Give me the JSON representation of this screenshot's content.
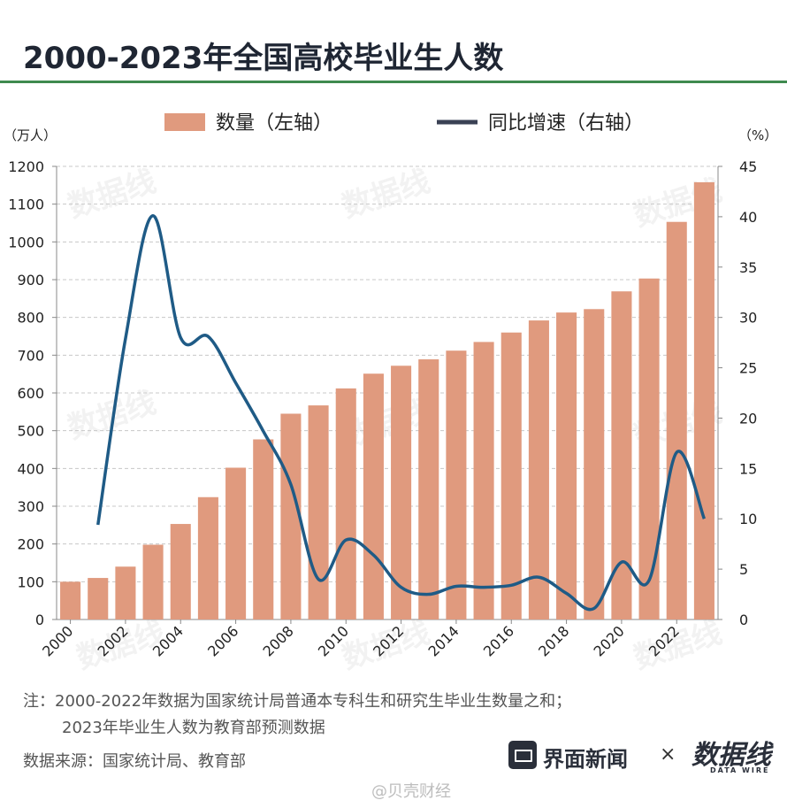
{
  "title": "2000-2023年全国高校毕业生人数",
  "legend": {
    "bar_label": "数量（左轴）",
    "line_label": "同比增速（右轴）"
  },
  "axes": {
    "left_unit": "（万人）",
    "right_unit": "（%）"
  },
  "notes": {
    "line1": "注：2000-2022年数据为国家统计局普通本专科生和研究生毕业生数量之和；",
    "line2": "2023年毕业生人数为教育部预测数据",
    "source": "数据来源：国家统计局、教育部"
  },
  "brand": {
    "name": "界面新闻",
    "times": "×",
    "logo_text": "数据线",
    "logo_sub": "DATA WIRE"
  },
  "watermark": {
    "text": "数据线",
    "sub": "DATA WIRE",
    "bottom": "@贝壳财经"
  },
  "colors": {
    "bar": "#e09a7e",
    "line": "#1f5b86",
    "rule": "#3f8a4f"
  },
  "chart_data": {
    "type": "bar",
    "title": "2000-2023年全国高校毕业生人数",
    "x": [
      2000,
      2001,
      2002,
      2003,
      2004,
      2005,
      2006,
      2007,
      2008,
      2009,
      2010,
      2011,
      2012,
      2013,
      2014,
      2015,
      2016,
      2017,
      2018,
      2019,
      2020,
      2021,
      2022,
      2023
    ],
    "x_tick_labels": [
      "2000",
      "2002",
      "2004",
      "2006",
      "2008",
      "2010",
      "2012",
      "2014",
      "2016",
      "2018",
      "2020",
      "2022"
    ],
    "series": [
      {
        "name": "数量（左轴）",
        "type": "bar",
        "axis": "left",
        "values": [
          100,
          110,
          140,
          198,
          253,
          324,
          402,
          477,
          545,
          567,
          612,
          651,
          672,
          689,
          712,
          735,
          760,
          792,
          813,
          822,
          869,
          903,
          1053,
          1158
        ]
      },
      {
        "name": "同比增速（右轴）",
        "type": "line",
        "axis": "right",
        "values": [
          null,
          9.4,
          27.9,
          40.1,
          28.0,
          28.1,
          23.5,
          18.7,
          13.4,
          4.0,
          7.9,
          6.4,
          3.2,
          2.5,
          3.3,
          3.2,
          3.4,
          4.2,
          2.6,
          1.1,
          5.7,
          3.9,
          16.6,
          10.0
        ]
      }
    ],
    "y_left": {
      "min": 0,
      "max": 1200,
      "ticks": [
        0,
        100,
        200,
        300,
        400,
        500,
        600,
        700,
        800,
        900,
        1000,
        1100,
        1200
      ]
    },
    "y_right": {
      "min": 0,
      "max": 45,
      "ticks": [
        0,
        5,
        10,
        15,
        20,
        25,
        30,
        35,
        40,
        45
      ]
    },
    "grid": true,
    "legend_position": "top"
  }
}
